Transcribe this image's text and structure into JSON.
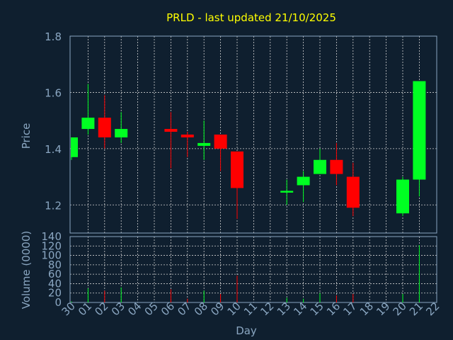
{
  "colors": {
    "background": "#0f1f2f",
    "axis": "#8aa6c1",
    "grid": "#d0d0d0",
    "title": "#ffff00",
    "up": "#00ff22",
    "down": "#ff0000"
  },
  "chart_data": {
    "type": "candlestick",
    "title": "PRLD - last updated 21/10/2025",
    "price_panel": {
      "ylabel": "Price",
      "ylim": [
        1.1,
        1.8
      ],
      "yticks": [
        "1.2",
        "1.4",
        "1.6",
        "1.8"
      ],
      "grid": true
    },
    "volume_panel": {
      "ylabel": "Volume (0000)",
      "ylim": [
        0,
        140
      ],
      "yticks": [
        "0",
        "20",
        "40",
        "60",
        "80",
        "100",
        "120",
        "140"
      ],
      "grid": true
    },
    "xlabel": "Day",
    "x_ticks": [
      "30",
      "01",
      "02",
      "03",
      "04",
      "05",
      "06",
      "07",
      "08",
      "09",
      "10",
      "11",
      "12",
      "13",
      "14",
      "15",
      "16",
      "17",
      "18",
      "19",
      "20",
      "21",
      "22"
    ],
    "candles": [
      {
        "day": "30",
        "open": 1.37,
        "high": 1.44,
        "low": 1.36,
        "close": 1.44,
        "volume": 2
      },
      {
        "day": "01",
        "open": 1.47,
        "high": 1.63,
        "low": 1.45,
        "close": 1.51,
        "volume": 30
      },
      {
        "day": "02",
        "open": 1.51,
        "high": 1.59,
        "low": 1.4,
        "close": 1.44,
        "volume": 25
      },
      {
        "day": "03",
        "open": 1.44,
        "high": 1.53,
        "low": 1.42,
        "close": 1.47,
        "volume": 32
      },
      {
        "day": "06",
        "open": 1.47,
        "high": 1.53,
        "low": 1.33,
        "close": 1.46,
        "volume": 28
      },
      {
        "day": "07",
        "open": 1.45,
        "high": 1.46,
        "low": 1.37,
        "close": 1.44,
        "volume": 8
      },
      {
        "day": "08",
        "open": 1.41,
        "high": 1.5,
        "low": 1.36,
        "close": 1.42,
        "volume": 25
      },
      {
        "day": "09",
        "open": 1.45,
        "high": 1.45,
        "low": 1.32,
        "close": 1.4,
        "volume": 18
      },
      {
        "day": "10",
        "open": 1.39,
        "high": 1.39,
        "low": 1.15,
        "close": 1.26,
        "volume": 57
      },
      {
        "day": "13",
        "open": 1.25,
        "high": 1.29,
        "low": 1.2,
        "close": 1.25,
        "volume": 10
      },
      {
        "day": "14",
        "open": 1.27,
        "high": 1.32,
        "low": 1.21,
        "close": 1.3,
        "volume": 8
      },
      {
        "day": "15",
        "open": 1.31,
        "high": 1.4,
        "low": 1.31,
        "close": 1.36,
        "volume": 20
      },
      {
        "day": "16",
        "open": 1.36,
        "high": 1.42,
        "low": 1.27,
        "close": 1.31,
        "volume": 15
      },
      {
        "day": "17",
        "open": 1.3,
        "high": 1.35,
        "low": 1.16,
        "close": 1.19,
        "volume": 18
      },
      {
        "day": "20",
        "open": 1.17,
        "high": 1.3,
        "low": 1.16,
        "close": 1.29,
        "volume": 18
      },
      {
        "day": "21",
        "open": 1.29,
        "high": 1.64,
        "low": 1.23,
        "close": 1.64,
        "volume": 122
      }
    ]
  }
}
